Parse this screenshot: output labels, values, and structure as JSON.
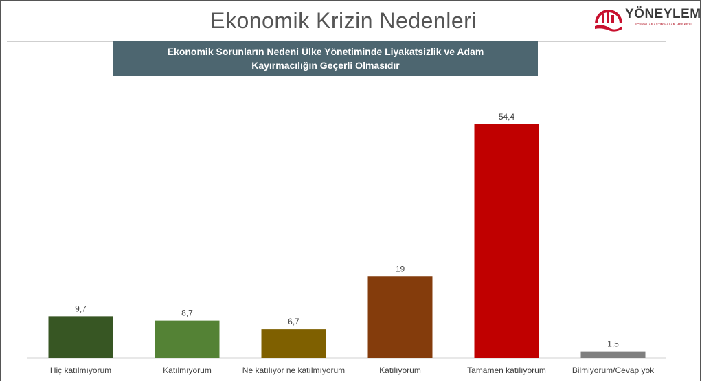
{
  "header": {
    "title": "Ekonomik Krizin Nedenleri"
  },
  "logo": {
    "name": "YÖNEYLEM",
    "tagline": "SOSYAL ARAŞTIRMALAR MERKEZİ",
    "accent": "#c8102e"
  },
  "chart_data": {
    "type": "bar",
    "title": "Ekonomik Sorunların Nedeni Ülke Yönetiminde Liyakatsizlik ve Adam Kayırmacılığın Geçerli Olmasıdır",
    "categories": [
      "Hiç katılmıyorum",
      "Katılmıyorum",
      "Ne katılıyor ne katılmıyorum",
      "Katılıyorum",
      "Tamamen katılıyorum",
      "Bilmiyorum/Cevap yok"
    ],
    "values": [
      9.7,
      8.7,
      6.7,
      19,
      54.4,
      1.5
    ],
    "value_labels": [
      "9,7",
      "8,7",
      "6,7",
      "19",
      "54,4",
      "1,5"
    ],
    "colors": [
      "#375623",
      "#548235",
      "#7f6000",
      "#843c0c",
      "#c00000",
      "#7f7f7f"
    ],
    "xlabel": "",
    "ylabel": "",
    "ylim": [
      0,
      54.4
    ],
    "grid": false,
    "legend": "none"
  }
}
